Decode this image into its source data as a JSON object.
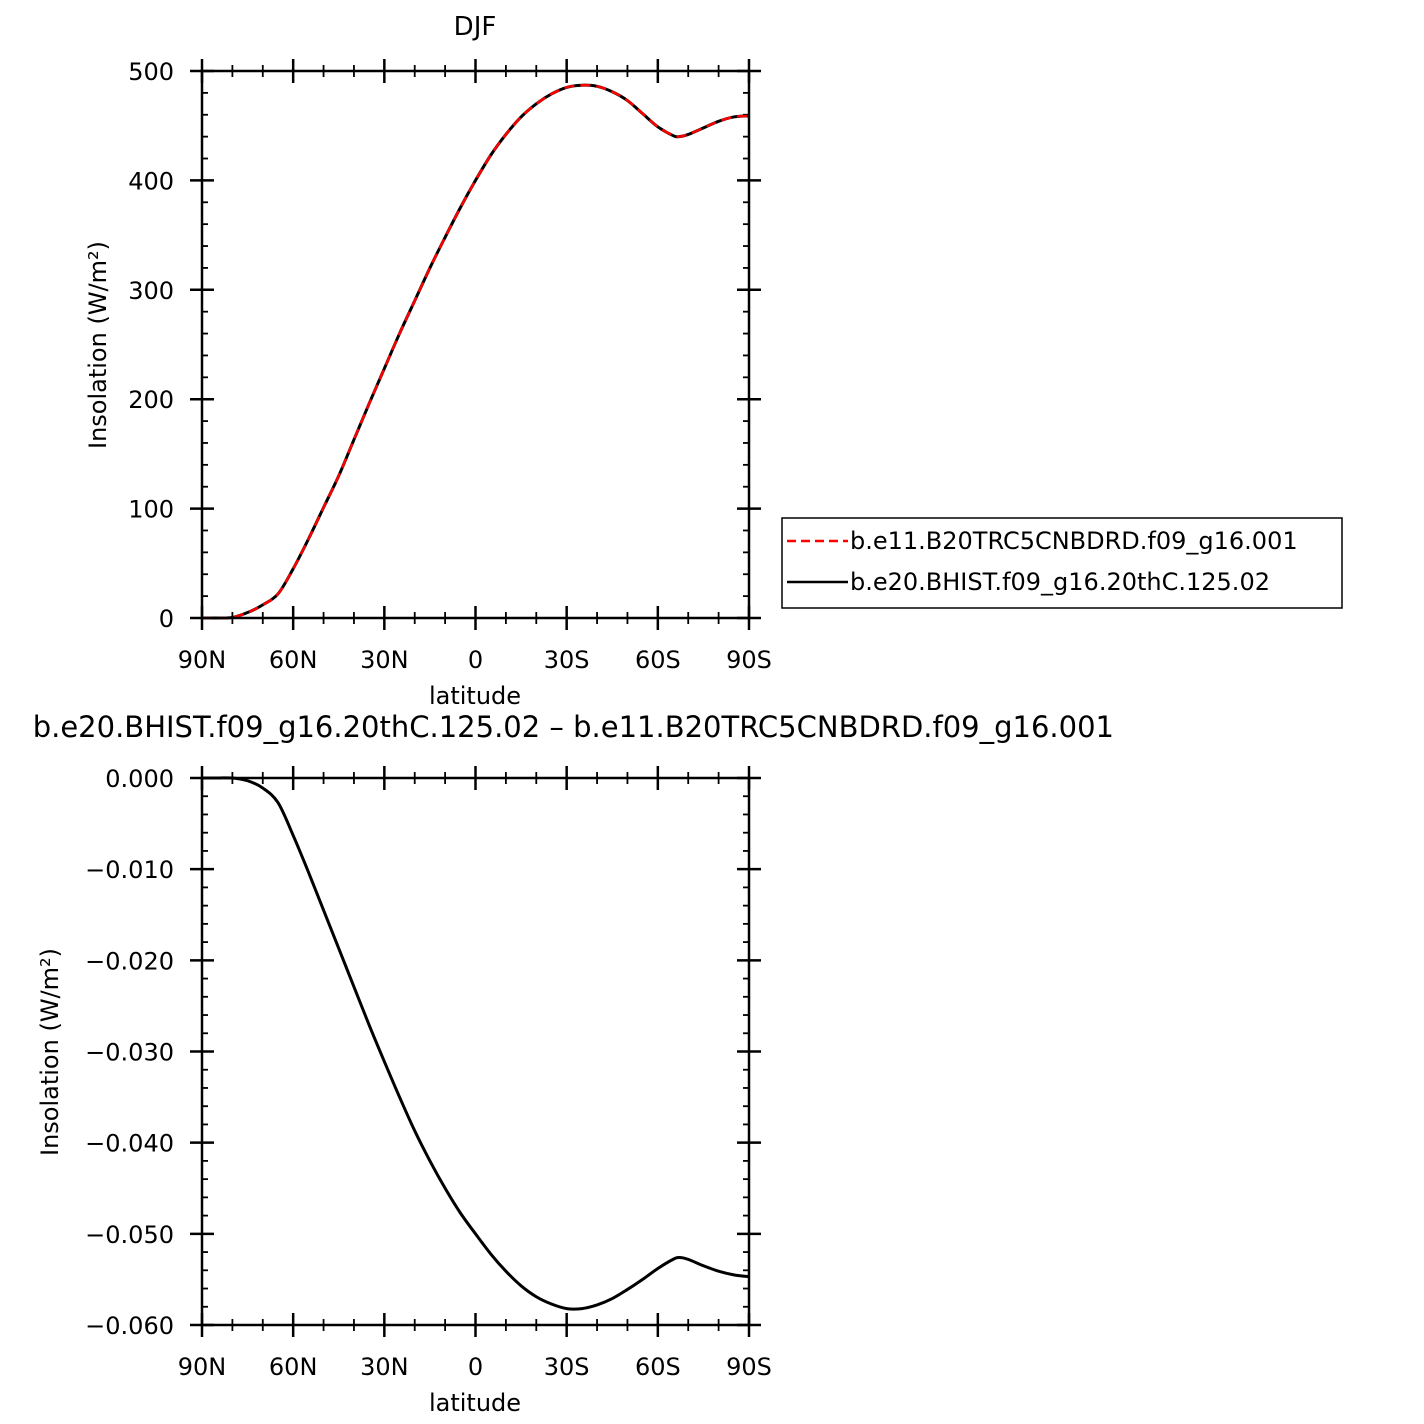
{
  "chart_data": [
    {
      "type": "line",
      "title": "DJF",
      "xlabel": "latitude",
      "ylabel": "Insolation  (W/m²)",
      "x_tick_labels": [
        "90N",
        "60N",
        "30N",
        "0",
        "30S",
        "60S",
        "90S"
      ],
      "y_tick_labels": [
        "0",
        "100",
        "200",
        "300",
        "400",
        "500"
      ],
      "xlim": [
        90,
        -90
      ],
      "ylim": [
        0,
        500
      ],
      "grid": false,
      "legend_position": "right",
      "legend": [
        "b.e11.B20TRC5CNBDRD.f09_g16.001",
        "b.e20.BHIST.f09_g16.20thC.125.02"
      ],
      "x": [
        90,
        85,
        80,
        75,
        70,
        65,
        60,
        55,
        50,
        45,
        40,
        35,
        30,
        25,
        20,
        15,
        10,
        5,
        0,
        -5,
        -10,
        -15,
        -20,
        -25,
        -30,
        -35,
        -40,
        -45,
        -50,
        -55,
        -60,
        -65,
        -67,
        -70,
        -75,
        -80,
        -85,
        -90
      ],
      "series": [
        {
          "name": "b.e11.B20TRC5CNBDRD.f09_g16.001",
          "color": "#ff0000",
          "dash": "dashed",
          "values": [
            0,
            0,
            0.5,
            5,
            12,
            22,
            45,
            72,
            101,
            130,
            163,
            196,
            228,
            260,
            290,
            320,
            348,
            375,
            400,
            423,
            442,
            458,
            470,
            479,
            485,
            487,
            486,
            481,
            473,
            461,
            449,
            441,
            440,
            442,
            448,
            454,
            458,
            459
          ]
        },
        {
          "name": "b.e20.BHIST.f09_g16.20thC.125.02",
          "color": "#000000",
          "dash": "solid",
          "values": [
            0,
            0,
            0.5,
            5,
            12,
            22,
            45,
            72,
            101,
            130,
            163,
            196,
            228,
            260,
            290,
            320,
            348,
            375,
            400,
            423,
            442,
            458,
            470,
            479,
            485,
            487,
            486,
            481,
            473,
            461,
            449,
            441,
            440,
            442,
            448,
            454,
            458,
            459
          ]
        }
      ]
    },
    {
      "type": "line",
      "title": "b.e20.BHIST.f09_g16.20thC.125.02 – b.e11.B20TRC5CNBDRD.f09_g16.001",
      "xlabel": "latitude",
      "ylabel": "Insolation  (W/m²)",
      "x_tick_labels": [
        "90N",
        "60N",
        "30N",
        "0",
        "30S",
        "60S",
        "90S"
      ],
      "y_tick_labels": [
        "0.000",
        "−0.010",
        "−0.020",
        "−0.030",
        "−0.040",
        "−0.050",
        "−0.060"
      ],
      "xlim": [
        90,
        -90
      ],
      "ylim": [
        -0.06,
        0
      ],
      "grid": false,
      "x": [
        90,
        85,
        80,
        75,
        70,
        65,
        60,
        55,
        50,
        45,
        40,
        35,
        30,
        25,
        20,
        15,
        10,
        5,
        0,
        -5,
        -10,
        -15,
        -20,
        -25,
        -30,
        -35,
        -40,
        -45,
        -50,
        -55,
        -60,
        -65,
        -67,
        -70,
        -75,
        -80,
        -85,
        -90
      ],
      "series": [
        {
          "color": "#000000",
          "dash": "solid",
          "values": [
            0,
            0,
            0,
            -0.0003,
            -0.0011,
            -0.0027,
            -0.0063,
            -0.0103,
            -0.0145,
            -0.0187,
            -0.0229,
            -0.0271,
            -0.0311,
            -0.035,
            -0.0387,
            -0.042,
            -0.045,
            -0.0477,
            -0.05,
            -0.0522,
            -0.0541,
            -0.0557,
            -0.0569,
            -0.0577,
            -0.0582,
            -0.0582,
            -0.0578,
            -0.0571,
            -0.0561,
            -0.055,
            -0.0538,
            -0.0528,
            -0.0526,
            -0.0528,
            -0.0535,
            -0.0541,
            -0.0545,
            -0.0547
          ]
        }
      ]
    }
  ]
}
